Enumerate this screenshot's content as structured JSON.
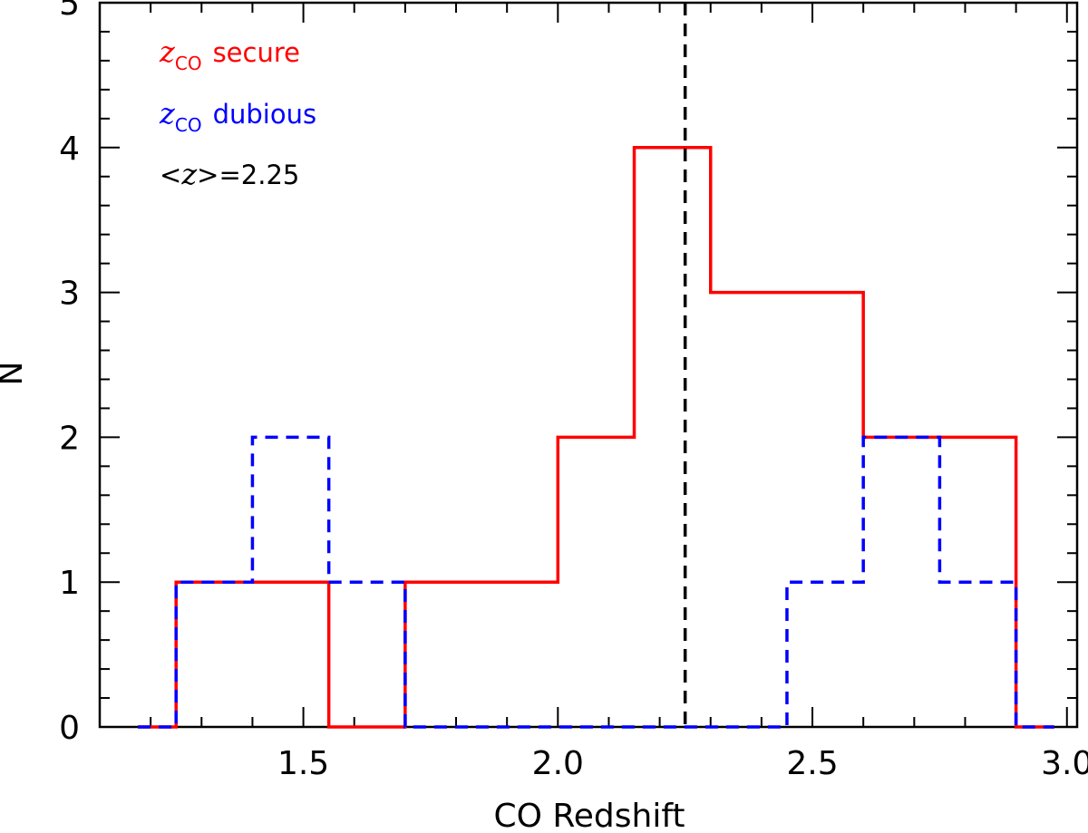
{
  "chart_data": {
    "type": "histogram",
    "xlabel": "CO Redshift",
    "ylabel": "N",
    "xlim": [
      1.1,
      3.02
    ],
    "ylim": [
      0,
      5
    ],
    "x_ticks": [
      1.5,
      2.0,
      2.5,
      3.0
    ],
    "x_tick_labels": [
      "1.5",
      "2.0",
      "2.5",
      "3.0"
    ],
    "y_ticks": [
      0,
      1,
      2,
      3,
      4,
      5
    ],
    "y_tick_labels": [
      "0",
      "1",
      "2",
      "3",
      "4",
      "5"
    ],
    "bin_edges": [
      1.175,
      1.25,
      1.4,
      1.55,
      1.7,
      1.85,
      2.0,
      2.15,
      2.3,
      2.45,
      2.6,
      2.75,
      2.9,
      2.975
    ],
    "series": [
      {
        "name": "secure",
        "color": "#ff0000",
        "line_style": "solid",
        "values": [
          0,
          1,
          1,
          0,
          1,
          1,
          2,
          4,
          3,
          3,
          2,
          2,
          0
        ]
      },
      {
        "name": "dubious",
        "color": "#0000ff",
        "line_style": "dashed",
        "values": [
          0,
          1,
          2,
          1,
          0,
          0,
          0,
          0,
          0,
          1,
          2,
          1,
          0
        ]
      }
    ],
    "reference_line": {
      "x": 2.25,
      "color": "#000000",
      "line_style": "dashed"
    },
    "legend": {
      "placement": "top-left",
      "entries": [
        {
          "symbol": "z",
          "subscript": "CO",
          "label": "secure",
          "color": "#ff0000"
        },
        {
          "symbol": "z",
          "subscript": "CO",
          "label": "dubious",
          "color": "#0000ff"
        }
      ],
      "mean_prefix": "<",
      "mean_symbol": "z",
      "mean_suffix": ">=2.25"
    }
  }
}
